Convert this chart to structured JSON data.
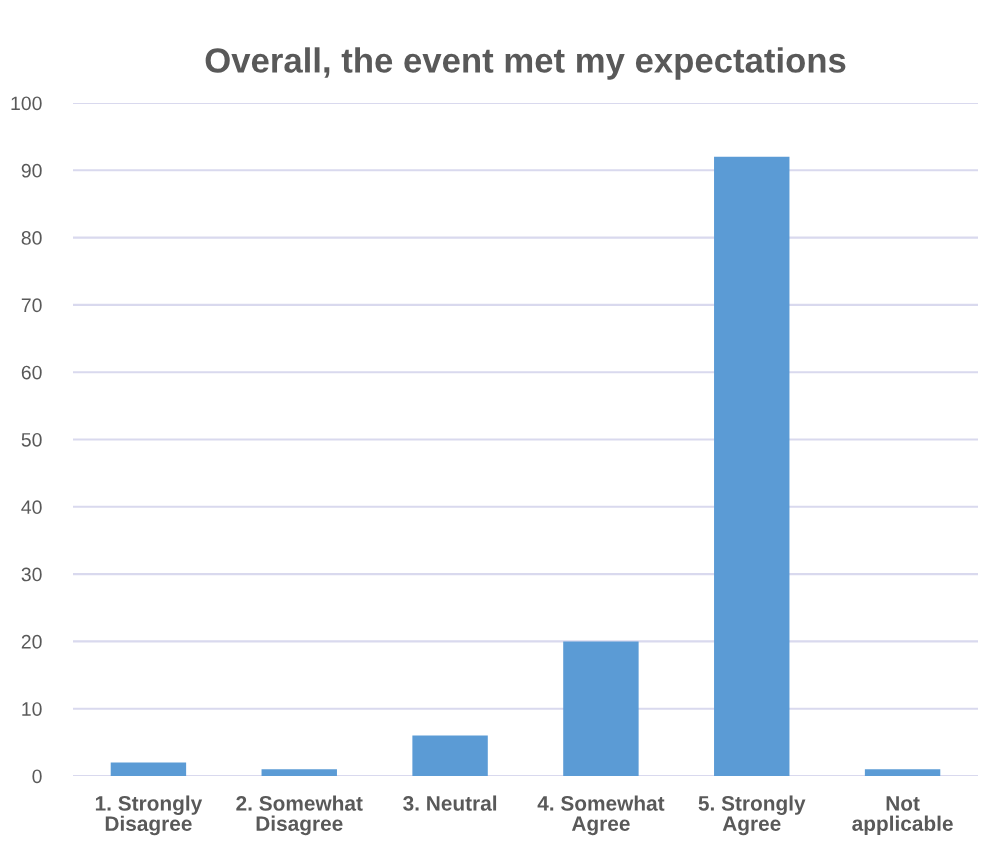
{
  "chart_data": {
    "type": "bar",
    "title": "Overall, the event met my expectations",
    "categories": [
      "1. Strongly\nDisagree",
      "2. Somewhat\nDisagree",
      "3. Neutral",
      "4. Somewhat\nAgree",
      "5. Strongly\nAgree",
      "Not\napplicable"
    ],
    "values": [
      2,
      1,
      6,
      20,
      92,
      1
    ],
    "color": "#5b9bd5",
    "ylim": [
      0,
      100
    ],
    "yticks": [
      0,
      10,
      20,
      30,
      40,
      50,
      60,
      70,
      80,
      90,
      100
    ],
    "grid": "y",
    "legend": false
  }
}
